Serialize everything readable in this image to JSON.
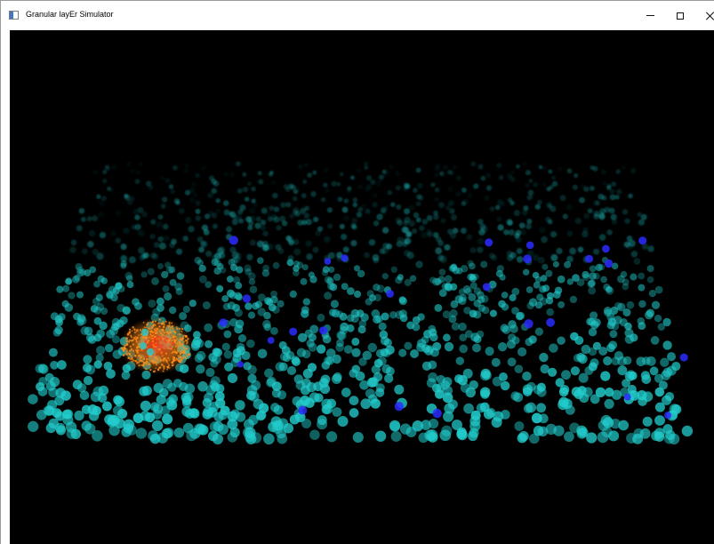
{
  "window": {
    "title": "Granular layEr Simulator",
    "icon": "app-window-icon",
    "controls": {
      "minimize": "minimize-icon",
      "maximize": "maximize-icon",
      "close": "close-icon"
    }
  },
  "simulation": {
    "background": "#000000",
    "colors": {
      "granule_cell": "#22cccc",
      "highlighted_cell": "#2a2aff",
      "active_cluster": "#ff8c1a",
      "active_core": "#ff3a1a"
    }
  }
}
